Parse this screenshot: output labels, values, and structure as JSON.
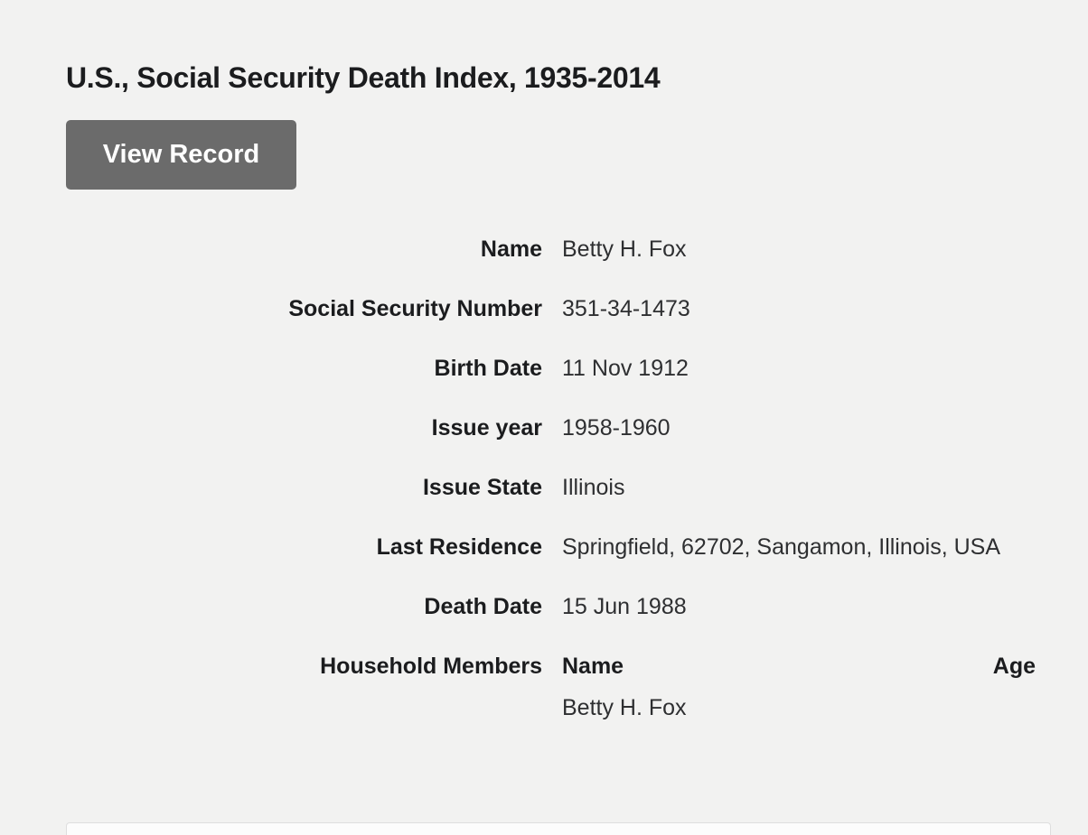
{
  "record": {
    "title": "U.S., Social Security Death Index, 1935-2014",
    "view_record_label": "View Record",
    "fields": [
      {
        "label": "Name",
        "value": "Betty H. Fox"
      },
      {
        "label": "Social Security Number",
        "value": "351-34-1473"
      },
      {
        "label": "Birth Date",
        "value": "11 Nov 1912"
      },
      {
        "label": "Issue year",
        "value": "1958-1960"
      },
      {
        "label": "Issue State",
        "value": "Illinois"
      },
      {
        "label": "Last Residence",
        "value": "Springfield, 62702, Sangamon, Illinois, USA"
      },
      {
        "label": "Death Date",
        "value": "15 Jun 1988"
      }
    ],
    "household": {
      "label": "Household Members",
      "name_header": "Name",
      "age_header": "Age",
      "members": [
        {
          "name": "Betty H. Fox",
          "age": ""
        }
      ]
    }
  },
  "colors": {
    "background": "#f2f2f1",
    "button_background": "#6b6b6b",
    "button_text": "#ffffff",
    "label_text": "#1b1c1e",
    "value_text": "#2e2f31"
  }
}
